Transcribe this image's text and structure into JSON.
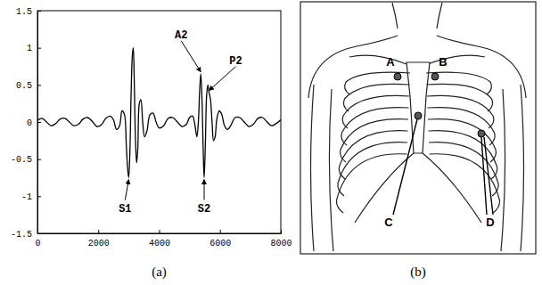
{
  "chart_data": {
    "type": "line",
    "title": "(a)",
    "color": "#000000",
    "line_style": "solid",
    "grid": false,
    "xlim": [
      0,
      8000
    ],
    "xticks": [
      0,
      2000,
      4000,
      6000,
      8000
    ],
    "ylim": [
      -1.5,
      1.5
    ],
    "yticks": [
      1.5,
      1,
      0.5,
      0,
      -0.5,
      -1,
      -1.5
    ],
    "x": [
      0,
      150,
      300,
      450,
      600,
      750,
      900,
      1050,
      1200,
      1350,
      1500,
      1650,
      1800,
      1950,
      2100,
      2250,
      2400,
      2500,
      2600,
      2700,
      2780,
      2860,
      2920,
      2960,
      3000,
      3040,
      3080,
      3120,
      3150,
      3180,
      3220,
      3260,
      3300,
      3350,
      3400,
      3460,
      3520,
      3600,
      3700,
      3800,
      3900,
      4000,
      4150,
      4300,
      4450,
      4600,
      4750,
      4900,
      5000,
      5100,
      5180,
      5240,
      5290,
      5330,
      5370,
      5410,
      5450,
      5480,
      5520,
      5560,
      5600,
      5640,
      5690,
      5740,
      5790,
      5840,
      5900,
      5980,
      6060,
      6150,
      6250,
      6350,
      6500,
      6650,
      6800,
      6950,
      7100,
      7250,
      7400,
      7550,
      7700,
      7850,
      8000
    ],
    "values": [
      0.02,
      0.05,
      0.0,
      -0.05,
      -0.02,
      0.04,
      0.05,
      0.0,
      -0.05,
      -0.03,
      0.04,
      0.06,
      0.01,
      -0.06,
      -0.04,
      0.05,
      0.08,
      0.03,
      -0.1,
      -0.05,
      0.15,
      0.1,
      -0.3,
      -0.6,
      -0.75,
      -0.4,
      0.4,
      0.9,
      1.0,
      0.6,
      -0.2,
      -0.55,
      -0.35,
      0.25,
      0.3,
      0.0,
      -0.2,
      -0.12,
      0.1,
      0.12,
      0.0,
      -0.08,
      -0.05,
      0.05,
      0.06,
      0.0,
      -0.06,
      -0.03,
      0.06,
      0.08,
      -0.05,
      -0.2,
      0.0,
      0.4,
      0.65,
      0.3,
      -0.4,
      -0.75,
      -0.3,
      0.35,
      0.5,
      0.4,
      0.3,
      0.0,
      -0.25,
      -0.2,
      0.05,
      0.15,
      0.1,
      -0.05,
      -0.1,
      -0.05,
      0.06,
      0.06,
      0.0,
      -0.06,
      -0.03,
      0.05,
      0.06,
      0.0,
      -0.05,
      -0.02,
      0.03
    ],
    "annotations": [
      {
        "text": "A2",
        "x": 5370,
        "y": 0.65
      },
      {
        "text": "P2",
        "x": 5640,
        "y": 0.4
      },
      {
        "text": "S1",
        "x": 3000,
        "y": -0.75
      },
      {
        "text": "S2",
        "x": 5480,
        "y": -0.75
      }
    ]
  },
  "diagram": {
    "caption": "(b)",
    "points": [
      {
        "label": "A"
      },
      {
        "label": "B"
      },
      {
        "label": "C"
      },
      {
        "label": "D"
      }
    ]
  }
}
